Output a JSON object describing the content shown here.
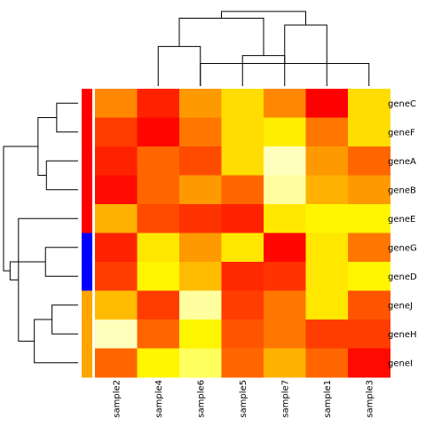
{
  "chart_data": {
    "type": "heatmap",
    "title": "",
    "xlabel": "",
    "ylabel": "",
    "columns": [
      "sample2",
      "sample4",
      "sample6",
      "sample5",
      "sample7",
      "sample1",
      "sample3"
    ],
    "rows": [
      "geneC",
      "geneF",
      "geneA",
      "geneB",
      "geneE",
      "geneG",
      "geneD",
      "geneJ",
      "geneH",
      "geneI"
    ],
    "value_scale": "0 = red (lowest) to 1 = pale yellow/white (highest), heat colors",
    "values": [
      [
        0.4,
        0.1,
        0.45,
        0.65,
        0.4,
        0.0,
        0.65
      ],
      [
        0.18,
        0.02,
        0.35,
        0.65,
        0.7,
        0.35,
        0.65
      ],
      [
        0.1,
        0.3,
        0.22,
        0.65,
        0.95,
        0.45,
        0.3
      ],
      [
        0.03,
        0.3,
        0.45,
        0.3,
        0.92,
        0.52,
        0.45
      ],
      [
        0.52,
        0.22,
        0.15,
        0.1,
        0.68,
        0.72,
        0.72
      ],
      [
        0.1,
        0.68,
        0.45,
        0.68,
        0.02,
        0.68,
        0.35
      ],
      [
        0.18,
        0.72,
        0.55,
        0.12,
        0.15,
        0.68,
        0.72
      ],
      [
        0.55,
        0.18,
        0.92,
        0.18,
        0.35,
        0.68,
        0.25
      ],
      [
        0.95,
        0.3,
        0.72,
        0.25,
        0.35,
        0.18,
        0.18
      ],
      [
        0.3,
        0.72,
        0.85,
        0.3,
        0.52,
        0.3,
        0.03
      ]
    ],
    "row_groups": [
      "red",
      "red",
      "red",
      "red",
      "red",
      "blue",
      "blue",
      "orange",
      "orange",
      "orange"
    ],
    "group_colors": {
      "red": "#ff0000",
      "blue": "#0000ff",
      "orange": "#ffa500"
    },
    "column_dendrogram": [
      {
        "left": 6,
        "right": 2,
        "height": 1.0
      },
      {
        "left": 3,
        "right": 4,
        "height": 1.35
      },
      {
        "left": 1,
        "right": 2,
        "height": 1.75
      },
      {
        "left": 5,
        "right": 7,
        "height": 2.7
      },
      {
        "left": 8,
        "right": 9,
        "height": 3.0
      },
      {
        "left": 10,
        "right": 11,
        "height": 3.3
      }
    ],
    "row_dendrogram": [
      {
        "left": 0,
        "right": 1,
        "height": 1.15
      },
      {
        "left": 2,
        "right": 3,
        "height": 1.7
      },
      {
        "left": 5,
        "right": 6,
        "height": 1.75
      },
      {
        "left": 7,
        "right": 8,
        "height": 1.4
      },
      {
        "left": 10,
        "right": 11,
        "height": 2.15
      },
      {
        "left": 9,
        "right": 13,
        "height": 2.35
      },
      {
        "left": 4,
        "right": 15,
        "height": 3.2
      },
      {
        "left": 16,
        "right": 12,
        "height": 3.65
      },
      {
        "left": 17,
        "right": 14,
        "height": 4.0
      }
    ]
  }
}
